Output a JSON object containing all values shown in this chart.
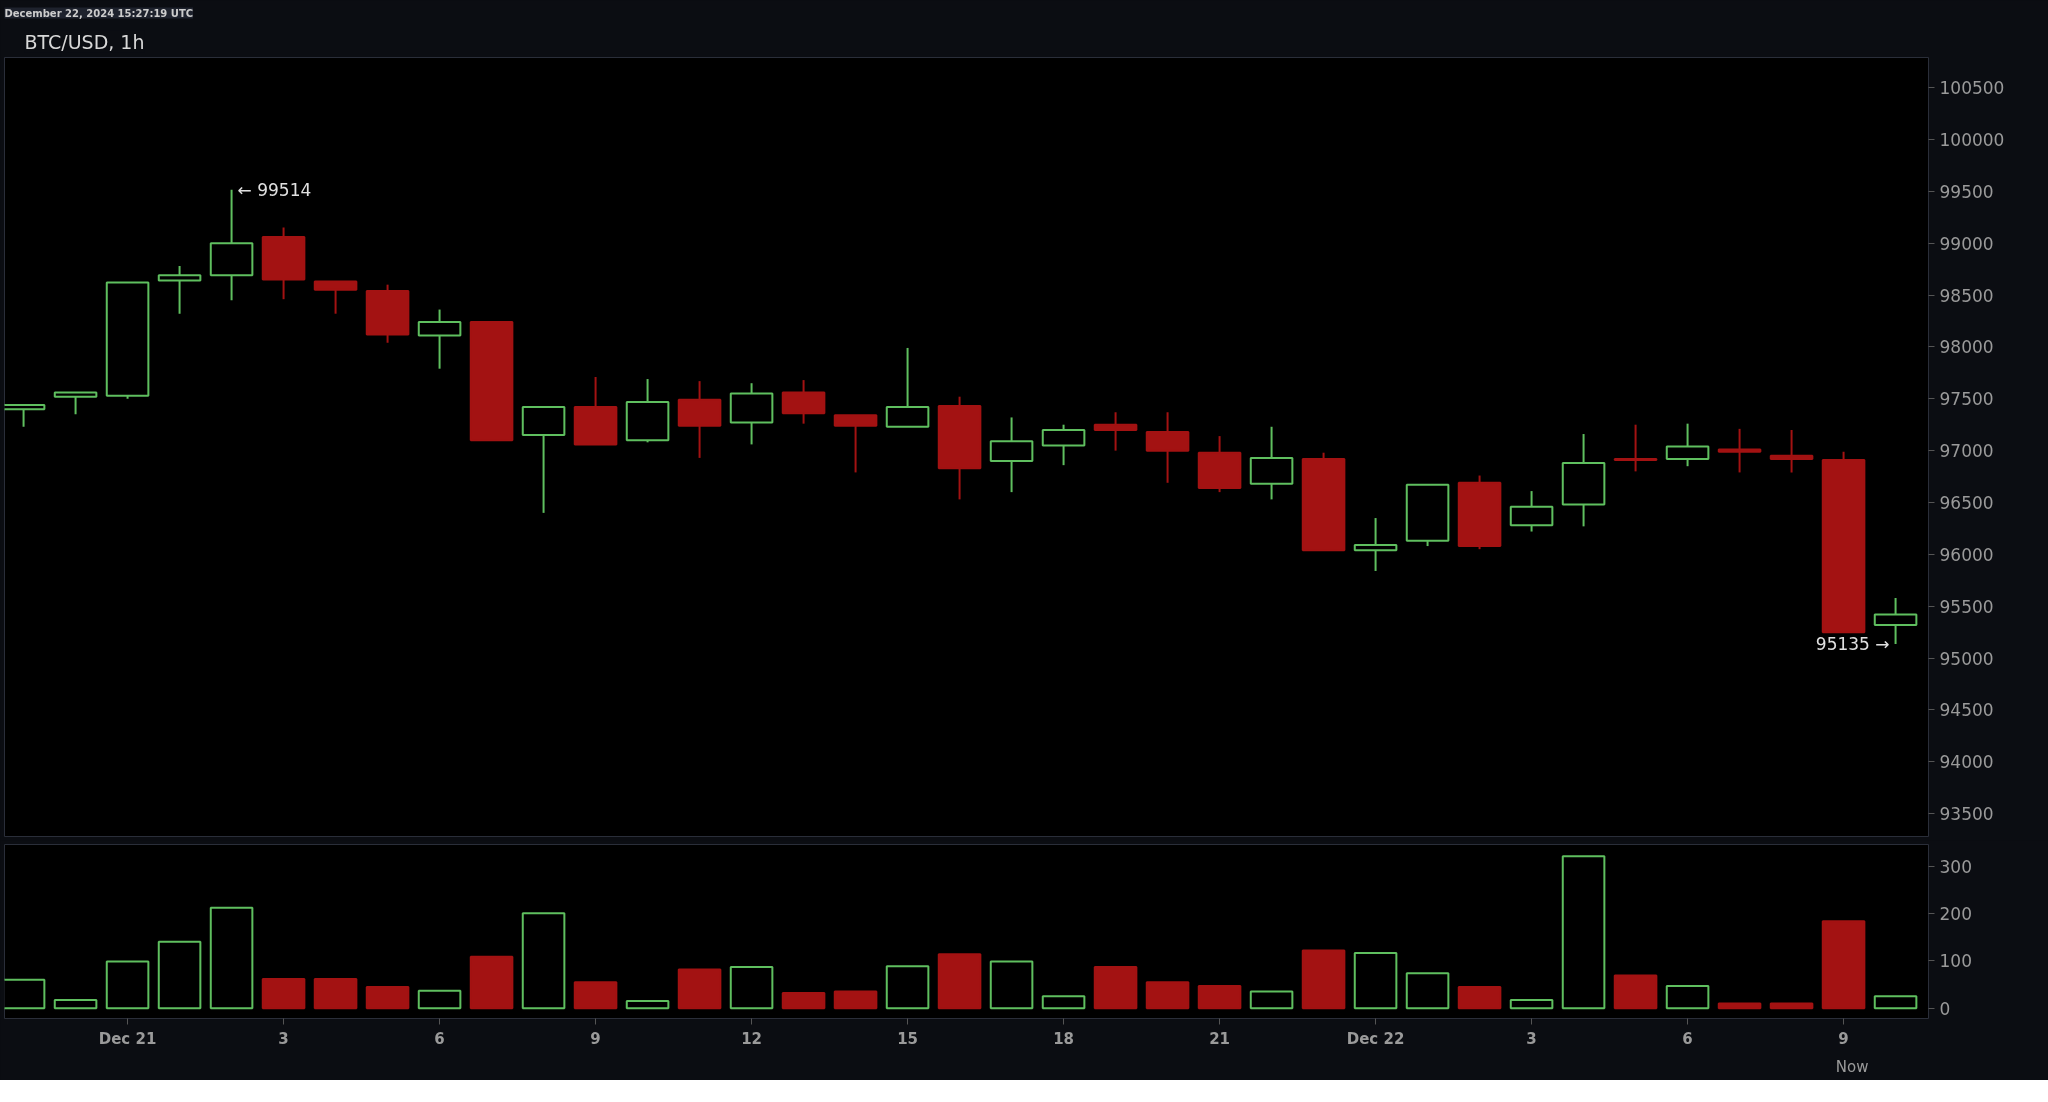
{
  "chart_data": [
    {
      "type": "candlestick",
      "title": "BTC/USD, 1h",
      "annotations": [
        "December 22, 2024 15:27:19 UTC",
        {
          "text": "← 99514",
          "x": "2024-12-21T02:00",
          "y": 99514
        },
        {
          "text": "95135 →",
          "x": "2024-12-22T10:00",
          "y": 95135
        }
      ],
      "x": [
        "2024-12-20T22:00",
        "2024-12-20T23:00",
        "2024-12-21T00:00",
        "2024-12-21T01:00",
        "2024-12-21T02:00",
        "2024-12-21T03:00",
        "2024-12-21T04:00",
        "2024-12-21T05:00",
        "2024-12-21T06:00",
        "2024-12-21T07:00",
        "2024-12-21T08:00",
        "2024-12-21T09:00",
        "2024-12-21T10:00",
        "2024-12-21T11:00",
        "2024-12-21T12:00",
        "2024-12-21T13:00",
        "2024-12-21T14:00",
        "2024-12-21T15:00",
        "2024-12-21T16:00",
        "2024-12-21T17:00",
        "2024-12-21T18:00",
        "2024-12-21T19:00",
        "2024-12-21T20:00",
        "2024-12-21T21:00",
        "2024-12-21T22:00",
        "2024-12-21T23:00",
        "2024-12-22T00:00",
        "2024-12-22T01:00",
        "2024-12-22T02:00",
        "2024-12-22T03:00",
        "2024-12-22T04:00",
        "2024-12-22T05:00",
        "2024-12-22T06:00",
        "2024-12-22T07:00",
        "2024-12-22T08:00",
        "2024-12-22T09:00",
        "2024-12-22T10:00"
      ],
      "ohlc": [
        [
          97400,
          97440,
          97230,
          97440
        ],
        [
          97520,
          97560,
          97350,
          97560
        ],
        [
          97530,
          98620,
          97500,
          98620
        ],
        [
          98640,
          98780,
          98320,
          98690
        ],
        [
          98690,
          99514,
          98450,
          99000
        ],
        [
          99060,
          99150,
          98460,
          98650
        ],
        [
          98630,
          98630,
          98320,
          98550
        ],
        [
          98540,
          98600,
          98040,
          98120
        ],
        [
          98110,
          98360,
          97790,
          98240
        ],
        [
          98240,
          98240,
          97100,
          97100
        ],
        [
          97150,
          97430,
          96400,
          97420
        ],
        [
          97420,
          97710,
          97060,
          97060
        ],
        [
          97100,
          97690,
          97080,
          97470
        ],
        [
          97490,
          97670,
          96930,
          97240
        ],
        [
          97270,
          97650,
          97060,
          97550
        ],
        [
          97560,
          97680,
          97260,
          97360
        ],
        [
          97340,
          97340,
          96790,
          97240
        ],
        [
          97230,
          97990,
          97230,
          97420
        ],
        [
          97430,
          97520,
          96530,
          96830
        ],
        [
          96900,
          97320,
          96600,
          97090
        ],
        [
          97050,
          97250,
          96860,
          97200
        ],
        [
          97250,
          97370,
          97000,
          97200
        ],
        [
          97180,
          97370,
          96690,
          97000
        ],
        [
          96980,
          97140,
          96600,
          96640
        ],
        [
          96680,
          97230,
          96530,
          96930
        ],
        [
          96920,
          96980,
          96040,
          96040
        ],
        [
          96040,
          96350,
          95840,
          96090
        ],
        [
          96130,
          96670,
          96080,
          96670
        ],
        [
          96690,
          96760,
          96050,
          96080
        ],
        [
          96280,
          96610,
          96220,
          96460
        ],
        [
          96480,
          97160,
          96270,
          96880
        ],
        [
          96920,
          97250,
          96800,
          96910
        ],
        [
          96920,
          97260,
          96850,
          97040
        ],
        [
          97010,
          97210,
          96790,
          96990
        ],
        [
          96950,
          97200,
          96790,
          96920
        ],
        [
          96910,
          96990,
          95250,
          95250
        ],
        [
          95320,
          95580,
          95135,
          95420
        ]
      ],
      "colors": [
        "#5fbf5f",
        "#5fbf5f",
        "#5fbf5f",
        "#5fbf5f",
        "#5fbf5f",
        "#a31212",
        "#a31212",
        "#a31212",
        "#5fbf5f",
        "#a31212",
        "#5fbf5f",
        "#a31212",
        "#5fbf5f",
        "#a31212",
        "#5fbf5f",
        "#a31212",
        "#a31212",
        "#5fbf5f",
        "#a31212",
        "#5fbf5f",
        "#5fbf5f",
        "#a31212",
        "#a31212",
        "#a31212",
        "#5fbf5f",
        "#a31212",
        "#5fbf5f",
        "#5fbf5f",
        "#a31212",
        "#5fbf5f",
        "#5fbf5f",
        "#a31212",
        "#5fbf5f",
        "#a31212",
        "#a31212",
        "#a31212",
        "#5fbf5f"
      ],
      "xlim": [
        "2024-12-20T21:38",
        "2024-12-22T10:38"
      ],
      "ylim": [
        93280,
        100790
      ],
      "yticks": [
        93500,
        94000,
        94500,
        95000,
        95500,
        96000,
        96500,
        97000,
        97500,
        98000,
        98500,
        99000,
        99500,
        100000,
        100500
      ],
      "tick_labels": "y",
      "grid": false
    },
    {
      "type": "bar",
      "annotations": [
        "Now"
      ],
      "x": [
        "2024-12-20T22:00",
        "2024-12-20T23:00",
        "2024-12-21T00:00",
        "2024-12-21T01:00",
        "2024-12-21T02:00",
        "2024-12-21T03:00",
        "2024-12-21T04:00",
        "2024-12-21T05:00",
        "2024-12-21T06:00",
        "2024-12-21T07:00",
        "2024-12-21T08:00",
        "2024-12-21T09:00",
        "2024-12-21T10:00",
        "2024-12-21T11:00",
        "2024-12-21T12:00",
        "2024-12-21T13:00",
        "2024-12-21T14:00",
        "2024-12-21T15:00",
        "2024-12-21T16:00",
        "2024-12-21T17:00",
        "2024-12-21T18:00",
        "2024-12-21T19:00",
        "2024-12-21T20:00",
        "2024-12-21T21:00",
        "2024-12-21T22:00",
        "2024-12-21T23:00",
        "2024-12-22T00:00",
        "2024-12-22T01:00",
        "2024-12-22T02:00",
        "2024-12-22T03:00",
        "2024-12-22T04:00",
        "2024-12-22T05:00",
        "2024-12-22T06:00",
        "2024-12-22T07:00",
        "2024-12-22T08:00",
        "2024-12-22T09:00",
        "2024-12-22T10:00"
      ],
      "values": [
        60,
        17,
        99,
        141,
        213,
        62,
        62,
        45,
        37,
        109,
        201,
        55,
        15,
        82,
        87,
        32,
        35,
        89,
        114,
        99,
        25,
        87,
        55,
        47,
        35,
        122,
        117,
        74,
        45,
        17,
        322,
        69,
        47,
        10,
        10,
        184,
        25
      ],
      "colors": [
        "#5fbf5f",
        "#5fbf5f",
        "#5fbf5f",
        "#5fbf5f",
        "#5fbf5f",
        "#a31212",
        "#a31212",
        "#a31212",
        "#5fbf5f",
        "#a31212",
        "#5fbf5f",
        "#a31212",
        "#5fbf5f",
        "#a31212",
        "#5fbf5f",
        "#a31212",
        "#a31212",
        "#5fbf5f",
        "#a31212",
        "#5fbf5f",
        "#5fbf5f",
        "#a31212",
        "#a31212",
        "#a31212",
        "#5fbf5f",
        "#a31212",
        "#5fbf5f",
        "#5fbf5f",
        "#a31212",
        "#5fbf5f",
        "#5fbf5f",
        "#a31212",
        "#5fbf5f",
        "#a31212",
        "#a31212",
        "#a31212",
        "#5fbf5f"
      ],
      "xlim": [
        "2024-12-20T21:38",
        "2024-12-22T10:38"
      ],
      "ylim": [
        -22,
        347
      ],
      "yticks": [
        0,
        100,
        200,
        300
      ],
      "xticks": [
        {
          "value": "2024-12-21T00:00",
          "label": "Dec 21"
        },
        {
          "value": "2024-12-21T03:00",
          "label": "3"
        },
        {
          "value": "2024-12-21T06:00",
          "label": "6"
        },
        {
          "value": "2024-12-21T09:00",
          "label": "9"
        },
        {
          "value": "2024-12-21T12:00",
          "label": "12"
        },
        {
          "value": "2024-12-21T15:00",
          "label": "15"
        },
        {
          "value": "2024-12-21T18:00",
          "label": "18"
        },
        {
          "value": "2024-12-21T21:00",
          "label": "21"
        },
        {
          "value": "2024-12-22T00:00",
          "label": "Dec 22"
        },
        {
          "value": "2024-12-22T03:00",
          "label": "3"
        },
        {
          "value": "2024-12-22T06:00",
          "label": "6"
        },
        {
          "value": "2024-12-22T09:00",
          "label": "9"
        }
      ],
      "grid": false
    }
  ]
}
